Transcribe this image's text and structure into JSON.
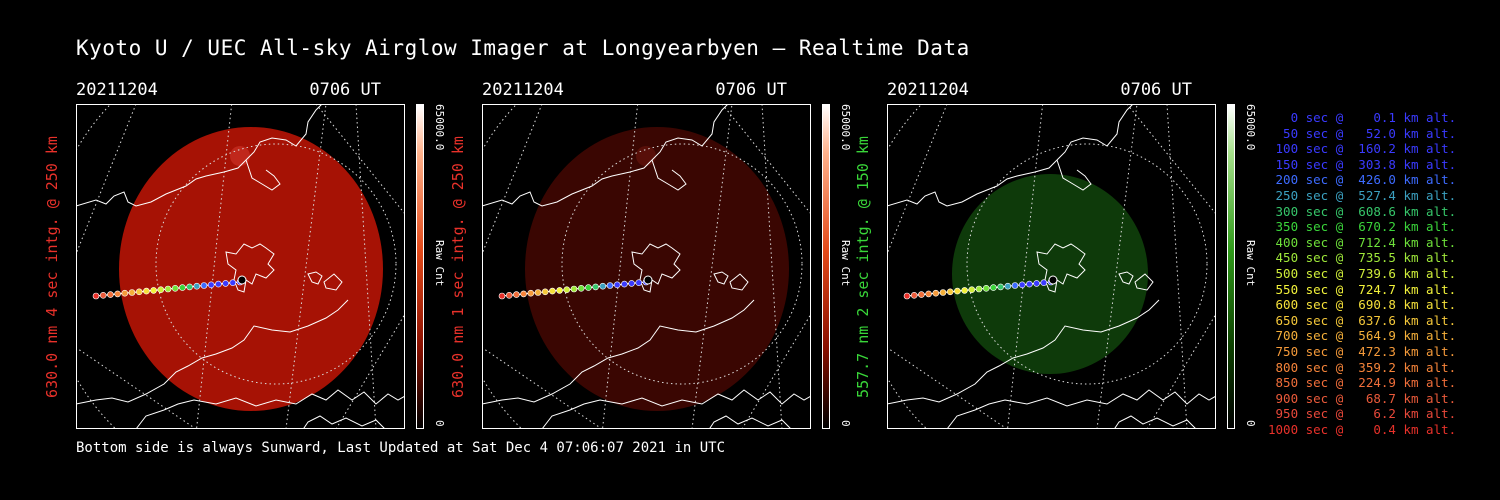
{
  "title": "Kyoto U / UEC All-sky Airglow Imager at Longyearbyen — Realtime Data",
  "footer": "Bottom side is always Sunward, Last Updated at Sat Dec  4 07:06:07 2021 in UTC",
  "colors": {
    "red_label": "#e8312a",
    "green_label": "#39d639"
  },
  "panels": [
    {
      "date": "20211204",
      "time": "0706 UT",
      "label": "630.0 nm  4 sec intg. @ 250 km",
      "label_color": "#e8312a",
      "cbar_max": "65000.0",
      "cbar_unit": "Raw Cnt",
      "cbar_min": "0",
      "glow": "red-bright"
    },
    {
      "date": "20211204",
      "time": "0706 UT",
      "label": "630.0 nm  1 sec intg. @ 250 km",
      "label_color": "#e8312a",
      "cbar_max": "65000.0",
      "cbar_unit": "Raw Cnt",
      "cbar_min": "0",
      "glow": "red-dim"
    },
    {
      "date": "20211204",
      "time": "0706 UT",
      "label": "557.7 nm  2 sec intg. @ 150 km",
      "label_color": "#39d639",
      "cbar_max": "65000.0",
      "cbar_unit": "Raw Cnt",
      "cbar_min": "0",
      "glow": "green"
    }
  ],
  "legend": [
    {
      "text": "   0 sec @    0.1 km alt.",
      "color": "#3a3aff"
    },
    {
      "text": "  50 sec @   52.0 km alt.",
      "color": "#3a3aff"
    },
    {
      "text": " 100 sec @  160.2 km alt.",
      "color": "#3a3aff"
    },
    {
      "text": " 150 sec @  303.8 km alt.",
      "color": "#3a3aff"
    },
    {
      "text": " 200 sec @  426.0 km alt.",
      "color": "#3d6bff"
    },
    {
      "text": " 250 sec @  527.4 km alt.",
      "color": "#3ba0c0"
    },
    {
      "text": " 300 sec @  608.6 km alt.",
      "color": "#36c66a"
    },
    {
      "text": " 350 sec @  670.2 km alt.",
      "color": "#3ad43a"
    },
    {
      "text": " 400 sec @  712.4 km alt.",
      "color": "#6ee03a"
    },
    {
      "text": " 450 sec @  735.5 km alt.",
      "color": "#9fe83a"
    },
    {
      "text": " 500 sec @  739.6 km alt.",
      "color": "#d0ee3a"
    },
    {
      "text": " 550 sec @  724.7 km alt.",
      "color": "#f2f23a"
    },
    {
      "text": " 600 sec @  690.8 km alt.",
      "color": "#f5e03a"
    },
    {
      "text": " 650 sec @  637.6 km alt.",
      "color": "#f5c83a"
    },
    {
      "text": " 700 sec @  564.9 km alt.",
      "color": "#f5b03a"
    },
    {
      "text": " 750 sec @  472.3 km alt.",
      "color": "#f59a3a"
    },
    {
      "text": " 800 sec @  359.2 km alt.",
      "color": "#f5843a"
    },
    {
      "text": " 850 sec @  224.9 km alt.",
      "color": "#f06e3a"
    },
    {
      "text": " 900 sec @   68.7 km alt.",
      "color": "#ea5a3a"
    },
    {
      "text": " 950 sec @    6.2 km alt.",
      "color": "#e8483a"
    },
    {
      "text": "1000 sec @    0.4 km alt.",
      "color": "#e8312a"
    }
  ]
}
